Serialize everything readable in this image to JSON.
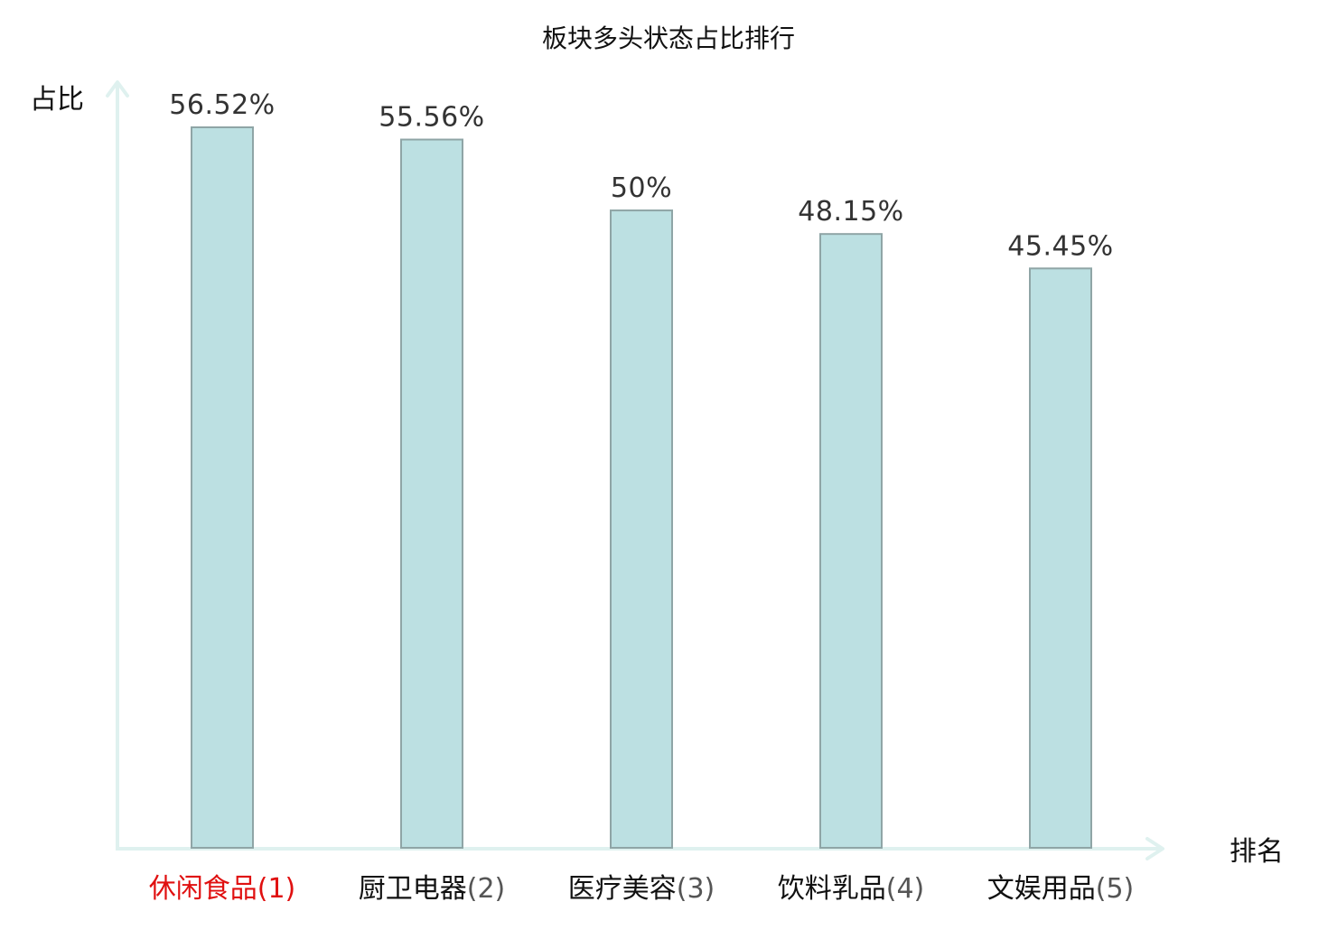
{
  "chart_data": {
    "type": "bar",
    "title": "板块多头状态占比排行",
    "xlabel": "排名",
    "ylabel": "占比",
    "categories": [
      "休闲食品",
      "厨卫电器",
      "医疗美容",
      "饮料乳品",
      "文娱用品"
    ],
    "ranks": [
      "(1)",
      "(2)",
      "(3)",
      "(4)",
      "(5)"
    ],
    "values": [
      56.52,
      55.56,
      50,
      48.15,
      45.45
    ],
    "value_labels": [
      "56.52%",
      "55.56%",
      "50%",
      "48.15%",
      "45.45%"
    ],
    "highlight_index": 0,
    "ylim": [
      0,
      56.52
    ],
    "grid": false,
    "legend": "none"
  },
  "colors": {
    "bar_fill": "#bce0e2",
    "bar_stroke": "#8fa5a6",
    "axis": "#dff1ef",
    "highlight": "#e01010",
    "category_text": "#111111",
    "rank_text": "#555555"
  }
}
